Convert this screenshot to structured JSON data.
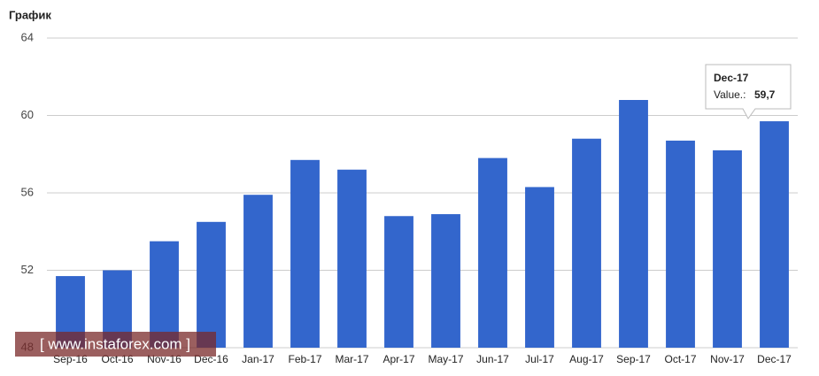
{
  "chart_data": {
    "type": "bar",
    "title": "График",
    "categories": [
      "Sep-16",
      "Oct-16",
      "Nov-16",
      "Dec-16",
      "Jan-17",
      "Feb-17",
      "Mar-17",
      "Apr-17",
      "May-17",
      "Jun-17",
      "Jul-17",
      "Aug-17",
      "Sep-17",
      "Oct-17",
      "Nov-17",
      "Dec-17"
    ],
    "values": [
      51.7,
      52.0,
      53.5,
      54.5,
      55.9,
      57.7,
      57.2,
      54.8,
      54.9,
      57.8,
      56.3,
      58.8,
      60.8,
      58.7,
      58.2,
      59.7
    ],
    "color": "#3366cc",
    "ylim": [
      48,
      64
    ],
    "yticks": [
      48,
      52,
      56,
      60,
      64
    ],
    "grid": true,
    "tooltip": {
      "label": "Value.:",
      "value_label": "59,7"
    },
    "watermark": "[ www.instaforex.com ]"
  }
}
